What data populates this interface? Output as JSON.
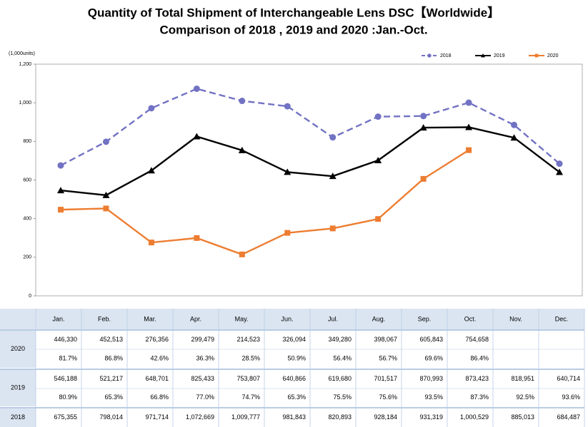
{
  "chart_data": {
    "type": "line",
    "title": "Quantity of Total Shipment of Interchangeable Lens DSC【Worldwide】",
    "subtitle": "Comparison of 2018 , 2019 and 2020 :Jan.-Oct.",
    "ylabel": "(1,000units)",
    "ylim": [
      0,
      1200
    ],
    "yticks": [
      0,
      200,
      400,
      600,
      800,
      {
        "value": 1000,
        "label": "1,000"
      },
      {
        "value": 1200,
        "label": "1,200"
      }
    ],
    "grid": false,
    "legend": "top-right",
    "series": [
      {
        "name": "2018",
        "color": "#7272c4",
        "line_style": "dashed",
        "marker": "circle",
        "values": [
          675.355,
          798.014,
          971.714,
          1072.669,
          1009.777,
          981.843,
          820.893,
          928.184,
          931.319,
          1000.529,
          885.013,
          684.487
        ]
      },
      {
        "name": "2019",
        "color": "#000000",
        "line_style": "solid",
        "marker": "triangle",
        "values": [
          546.188,
          521.217,
          648.701,
          825.433,
          753.807,
          640.866,
          619.68,
          701.517,
          870.993,
          873.423,
          818.951,
          640.714
        ]
      },
      {
        "name": "2020",
        "color": "#ed7d31",
        "line_style": "solid",
        "marker": "square",
        "values": [
          446.33,
          452.513,
          276.356,
          299.479,
          214.523,
          326.094,
          349.28,
          398.067,
          605.843,
          754.658
        ]
      }
    ]
  },
  "table": {
    "header": [
      "Jan.",
      "Feb.",
      "Mar.",
      "Apr.",
      "May.",
      "Jun.",
      "Jul.",
      "Aug.",
      "Sep.",
      "Oct.",
      "Nov.",
      "Dec."
    ],
    "rows": [
      {
        "label": "2020",
        "values": [
          "446,330",
          "452,513",
          "276,356",
          "299,479",
          "214,523",
          "326,094",
          "349,280",
          "398,067",
          "605,843",
          "754,658"
        ],
        "ratios": [
          "81.7%",
          "86.8%",
          "42.6%",
          "36.3%",
          "28.5%",
          "50.9%",
          "56.4%",
          "56.7%",
          "69.6%",
          "86.4%"
        ]
      },
      {
        "label": "2019",
        "values": [
          "546,188",
          "521,217",
          "648,701",
          "825,433",
          "753,807",
          "640,866",
          "619,680",
          "701,517",
          "870,993",
          "873,423",
          "818,951",
          "640,714"
        ],
        "ratios": [
          "80.9%",
          "65.3%",
          "66.8%",
          "77.0%",
          "74.7%",
          "65.3%",
          "75.5%",
          "75.6%",
          "93.5%",
          "87.3%",
          "92.5%",
          "93.6%"
        ]
      },
      {
        "label": "2018",
        "values": [
          "675,355",
          "798,014",
          "971,714",
          "1,072,669",
          "1,009,777",
          "981,843",
          "820,893",
          "928,184",
          "931,319",
          "1,000,529",
          "885,013",
          "684,487"
        ]
      }
    ]
  }
}
